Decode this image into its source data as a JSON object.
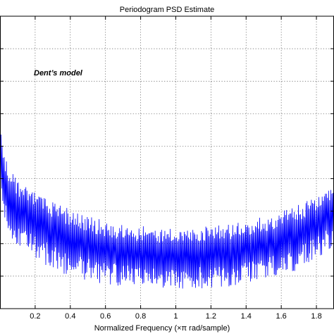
{
  "chart_data": {
    "type": "line",
    "title": "Periodogram PSD Estimate",
    "xlabel": "Normalized Frequency  (×π rad/sample)",
    "ylabel": "",
    "annotation": "Dent’s model",
    "xlim": [
      0.0,
      1.9
    ],
    "xticks": [
      0.2,
      0.4,
      0.6,
      0.8,
      1.0,
      1.2,
      1.4,
      1.6,
      1.8
    ],
    "xtick_labels": [
      "0.2",
      "0.4",
      "0.6",
      "0.8",
      "1",
      "1.2",
      "1.4",
      "1.6",
      "1.8"
    ],
    "ylim": [
      0,
      9
    ],
    "yticks": [
      1,
      2,
      3,
      4,
      5,
      6,
      7,
      8,
      9
    ],
    "grid": true,
    "grid_style": "dotted",
    "series": [
      {
        "color": "#0000ff",
        "oscillating": true,
        "envelope_x": [
          0.0,
          0.02,
          0.05,
          0.1,
          0.2,
          0.3,
          0.4,
          0.5,
          0.6,
          0.7,
          0.8,
          0.9,
          1.0,
          1.1,
          1.2,
          1.3,
          1.4,
          1.5,
          1.6,
          1.7,
          1.8,
          1.85,
          1.9
        ],
        "upper": [
          5.6,
          4.9,
          4.4,
          4.0,
          3.6,
          3.3,
          3.05,
          2.85,
          2.7,
          2.6,
          2.55,
          2.5,
          2.5,
          2.52,
          2.55,
          2.6,
          2.7,
          2.85,
          3.0,
          3.2,
          3.5,
          3.7,
          3.8
        ],
        "lower": [
          3.6,
          2.9,
          2.3,
          1.9,
          1.5,
          1.2,
          1.0,
          0.85,
          0.75,
          0.68,
          0.63,
          0.6,
          0.58,
          0.6,
          0.63,
          0.68,
          0.75,
          0.85,
          1.0,
          1.2,
          1.5,
          1.7,
          1.8
        ]
      }
    ]
  }
}
